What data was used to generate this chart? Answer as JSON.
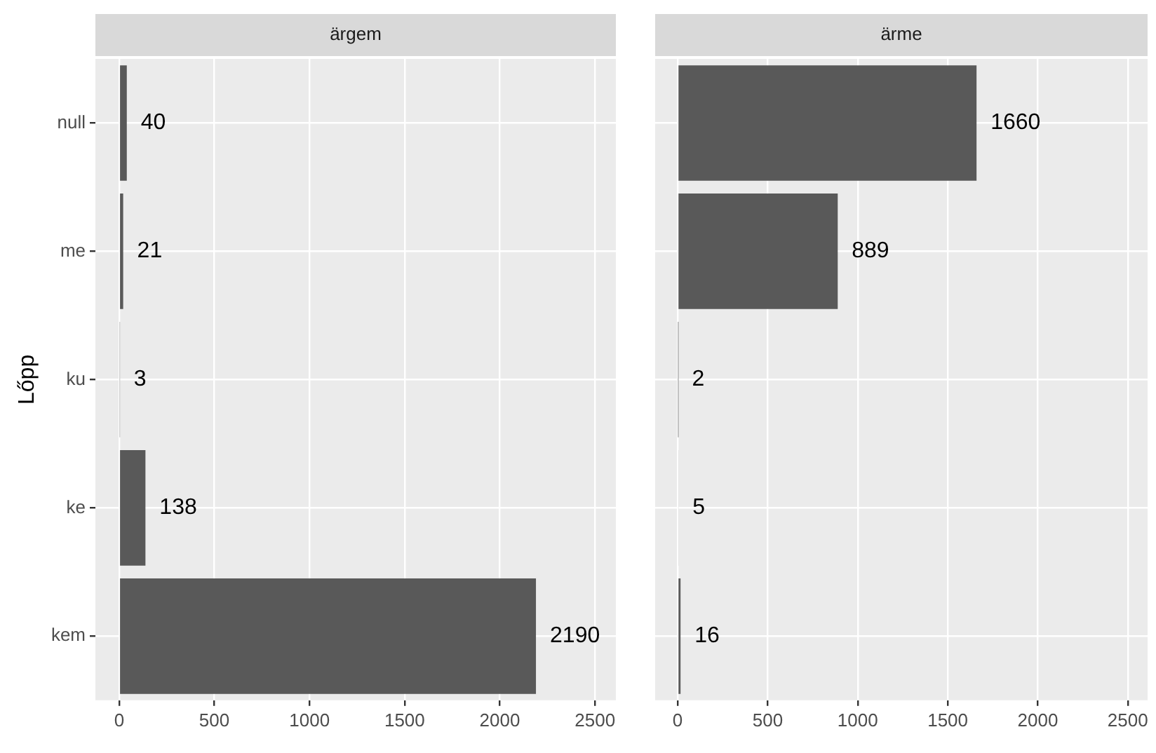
{
  "chart_data": [
    {
      "type": "bar",
      "orientation": "horizontal",
      "title": "ärgem",
      "ylabel": "Lőpp",
      "categories": [
        "null",
        "me",
        "ku",
        "ke",
        "kem"
      ],
      "values": [
        40,
        21,
        3,
        138,
        2190
      ],
      "color": "#595959",
      "xlim": [
        -125,
        2610
      ],
      "xticks": [
        0,
        500,
        1000,
        1500,
        2000,
        2500
      ],
      "grid": true,
      "data_labels": true
    },
    {
      "type": "bar",
      "orientation": "horizontal",
      "title": "ärme",
      "categories": [
        null,
        null,
        null,
        null,
        null
      ],
      "values": [
        1660,
        889,
        2,
        5,
        16
      ],
      "color": "#595959",
      "xlim": [
        -125,
        2610
      ],
      "xticks": [
        0,
        500,
        1000,
        1500,
        2000,
        2500
      ],
      "grid": true,
      "data_labels": true,
      "tick_labels": "x"
    }
  ]
}
